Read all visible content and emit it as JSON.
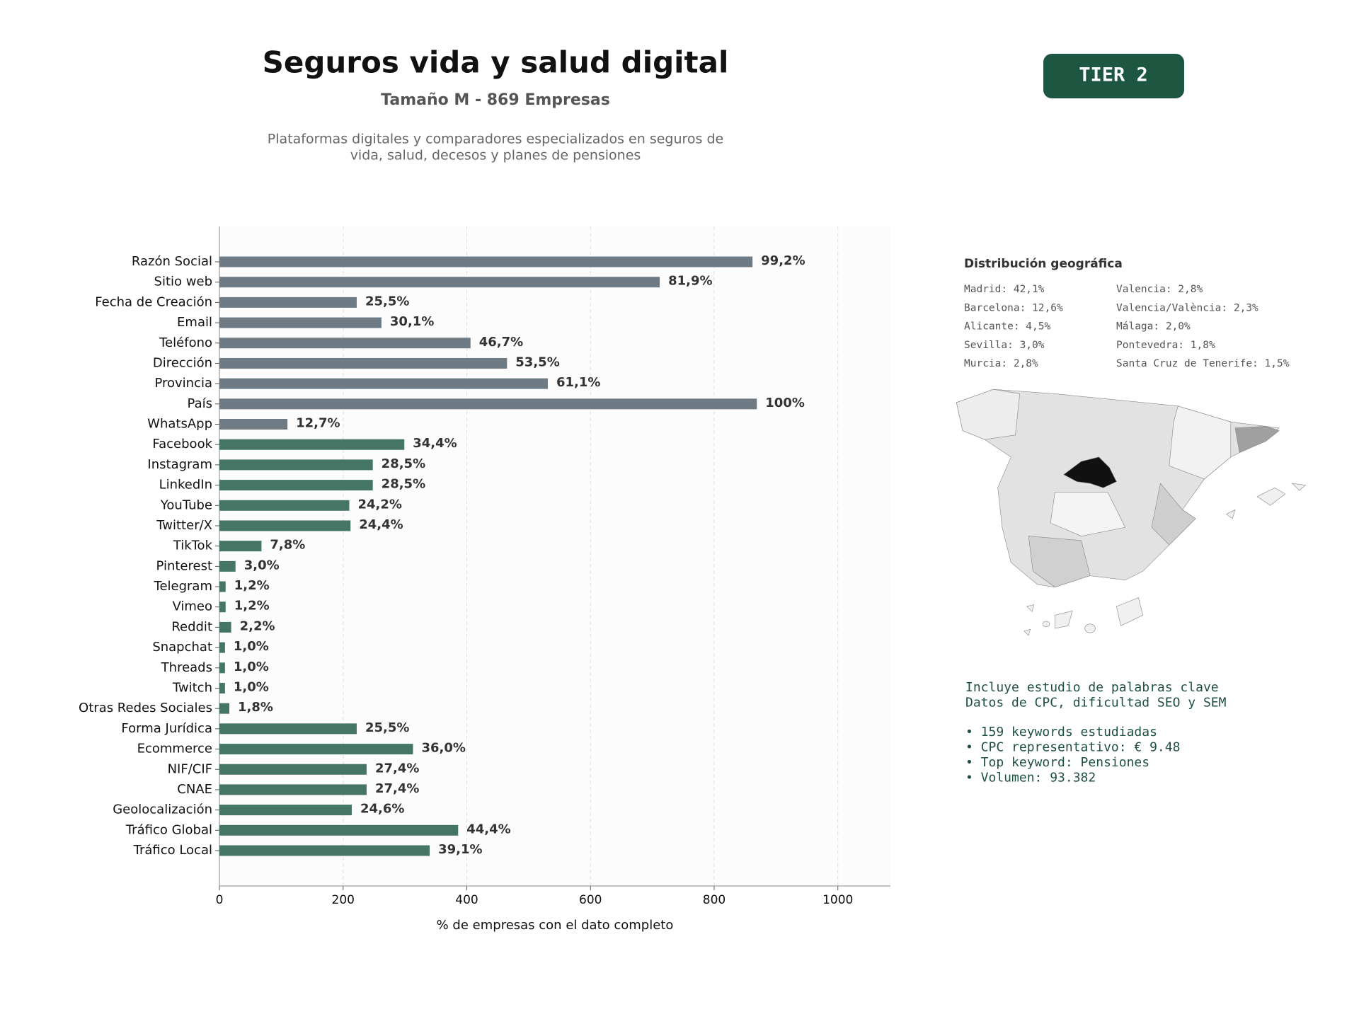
{
  "header": {
    "title": "Seguros vida y salud digital",
    "subtitle": "Tamaño M - 869 Empresas",
    "description": [
      "Plataformas digitales y comparadores especializados en seguros de",
      "vida, salud, decesos y planes de pensiones"
    ],
    "badge": "TIER 2"
  },
  "chart_data": {
    "type": "bar",
    "orientation": "horizontal",
    "categories": [
      "Razón Social",
      "Sitio web",
      "Fecha de Creación",
      "Email",
      "Teléfono",
      "Dirección",
      "Provincia",
      "País",
      "WhatsApp",
      "Facebook",
      "Instagram",
      "LinkedIn",
      "YouTube",
      "Twitter/X",
      "TikTok",
      "Pinterest",
      "Telegram",
      "Vimeo",
      "Reddit",
      "Snapchat",
      "Threads",
      "Twitch",
      "Otras Redes Sociales",
      "Forma Jurídica",
      "Ecommerce",
      "NIF/CIF",
      "CNAE",
      "Geolocalización",
      "Tráfico Global",
      "Tráfico Local"
    ],
    "values": [
      862,
      712,
      222,
      262,
      406,
      465,
      531,
      869,
      110,
      299,
      248,
      248,
      210,
      212,
      68,
      26,
      10,
      10,
      19,
      9,
      9,
      9,
      16,
      222,
      313,
      238,
      238,
      214,
      386,
      340
    ],
    "value_labels": [
      "99,2%",
      "81,9%",
      "25,5%",
      "30,1%",
      "46,7%",
      "53,5%",
      "61,1%",
      "100%",
      "12,7%",
      "34,4%",
      "28,5%",
      "28,5%",
      "24,2%",
      "24,4%",
      "7,8%",
      "3,0%",
      "1,2%",
      "1,2%",
      "2,2%",
      "1,0%",
      "1,0%",
      "1,0%",
      "1,8%",
      "25,5%",
      "36,0%",
      "27,4%",
      "27,4%",
      "24,6%",
      "44,4%",
      "39,1%"
    ],
    "colors": [
      "#6e7a84",
      "#6e7a84",
      "#6e7a84",
      "#6e7a84",
      "#6e7a84",
      "#6e7a84",
      "#6e7a84",
      "#6e7a84",
      "#6e7a84",
      "#457565",
      "#457565",
      "#457565",
      "#457565",
      "#457565",
      "#457565",
      "#457565",
      "#457565",
      "#457565",
      "#457565",
      "#457565",
      "#457565",
      "#457565",
      "#457565",
      "#457565",
      "#457565",
      "#457565",
      "#457565",
      "#457565",
      "#457565",
      "#457565"
    ],
    "xlabel": "% de empresas con el dato completo",
    "xlim": [
      0,
      1085
    ],
    "xticks": [
      0,
      200,
      400,
      600,
      800,
      1000
    ],
    "grid": true
  },
  "geo": {
    "title": "Distribución geográfica",
    "items": [
      "Madrid: 42,1%",
      "Barcelona: 12,6%",
      "Alicante: 4,5%",
      "Sevilla: 3,0%",
      "Murcia: 2,8%",
      "Valencia: 2,8%",
      "Valencia/València: 2,3%",
      "Málaga: 2,0%",
      "Pontevedra: 1,8%",
      "Santa Cruz de Tenerife: 1,5%"
    ]
  },
  "keywords": {
    "intro": [
      "Incluye estudio de palabras clave",
      "Datos de CPC, dificultad SEO y SEM"
    ],
    "bullets": [
      "• 159 keywords estudiadas",
      "• CPC representativo: € 9.48",
      "• Top keyword: Pensiones",
      "• Volumen: 93.382"
    ]
  }
}
